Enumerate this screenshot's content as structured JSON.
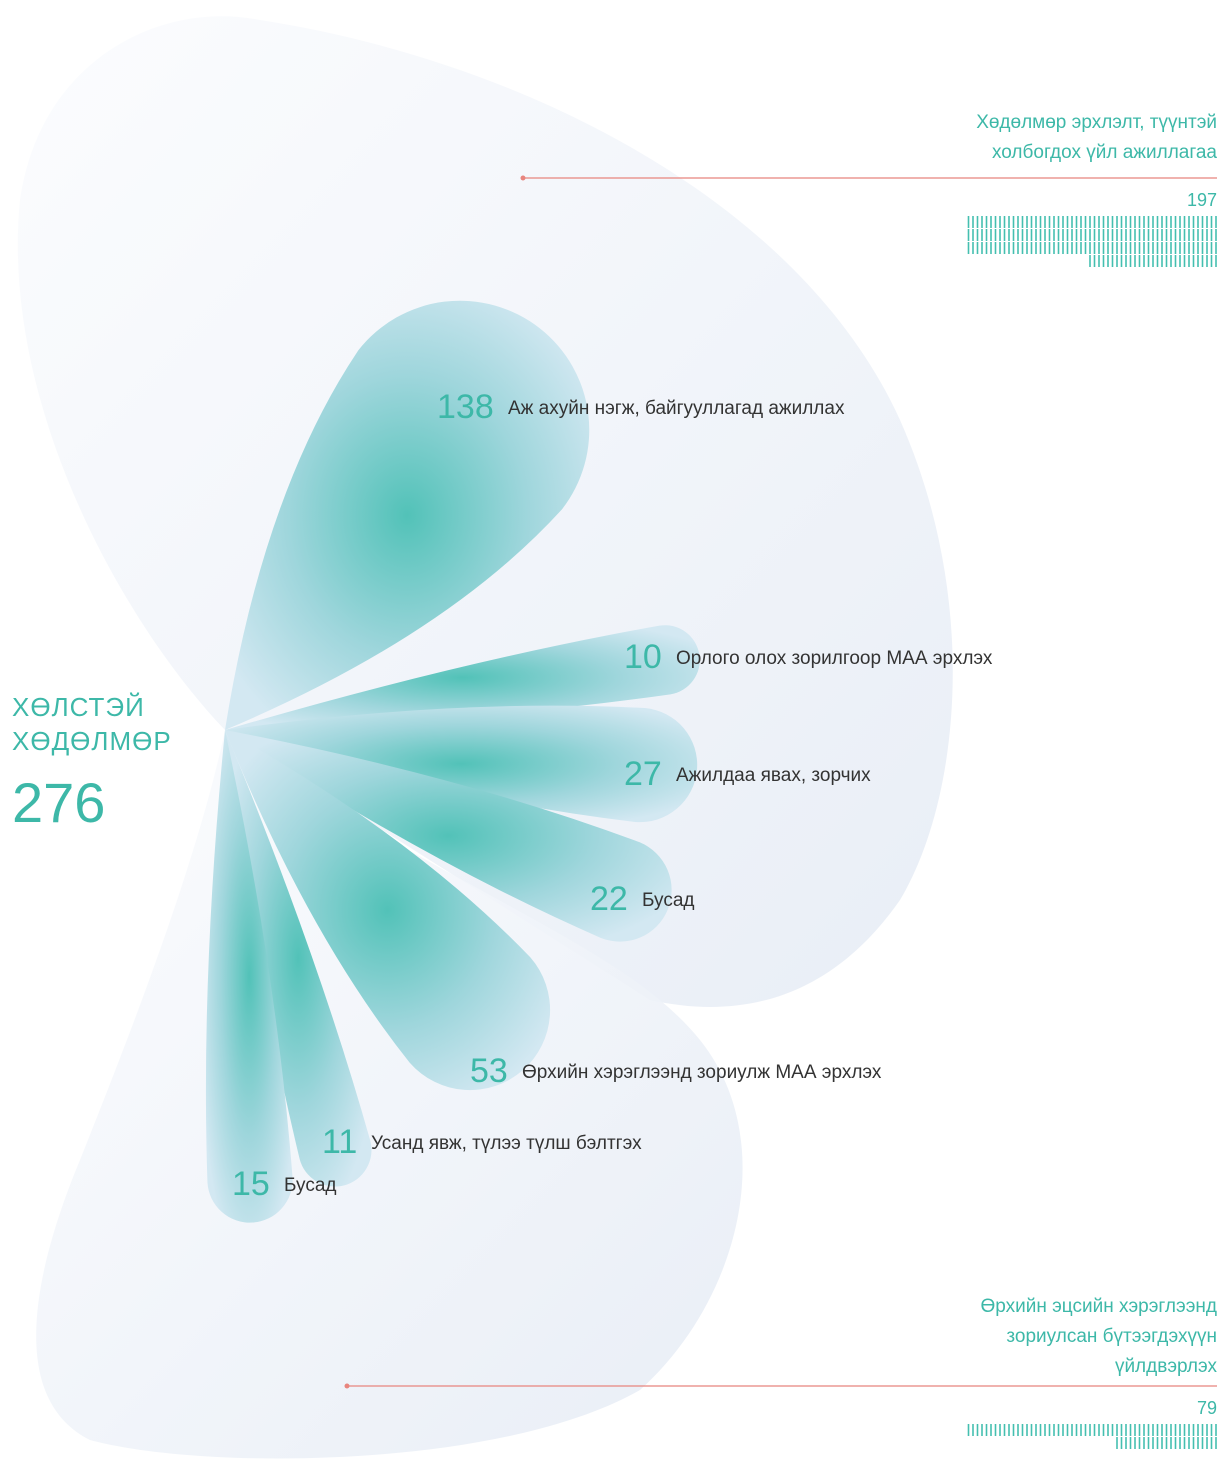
{
  "chart_data": {
    "type": "petal",
    "title": "ХӨЛСТЭЙ ХӨДӨЛМӨР",
    "total": 276,
    "color": "#45bfb0",
    "groups": [
      {
        "name": "Хөдөлмөр эрхлэлт, түүнтэй холбогдох үйл ажиллагаа",
        "value": 197,
        "items": [
          {
            "name": "Аж ахуйн нэгж, байгууллагад ажиллах",
            "value": 138
          },
          {
            "name": "Орлого олох зорилгоор МАА эрхлэх",
            "value": 10
          },
          {
            "name": "Ажилдаа явах, зорчих",
            "value": 27
          },
          {
            "name": "Бусад",
            "value": 22
          }
        ]
      },
      {
        "name": "Өрхийн эцсийн хэрэглээнд зориулсан бүтээгдэхүүн үйлдвэрлэх",
        "value": 79,
        "items": [
          {
            "name": "Өрхийн хэрэглээнд зориулж МАА эрхлэх",
            "value": 53
          },
          {
            "name": "Усанд явж, түлээ түлш бэлтгэх",
            "value": 11
          },
          {
            "name": "Бусад",
            "value": 15
          }
        ]
      }
    ]
  }
}
